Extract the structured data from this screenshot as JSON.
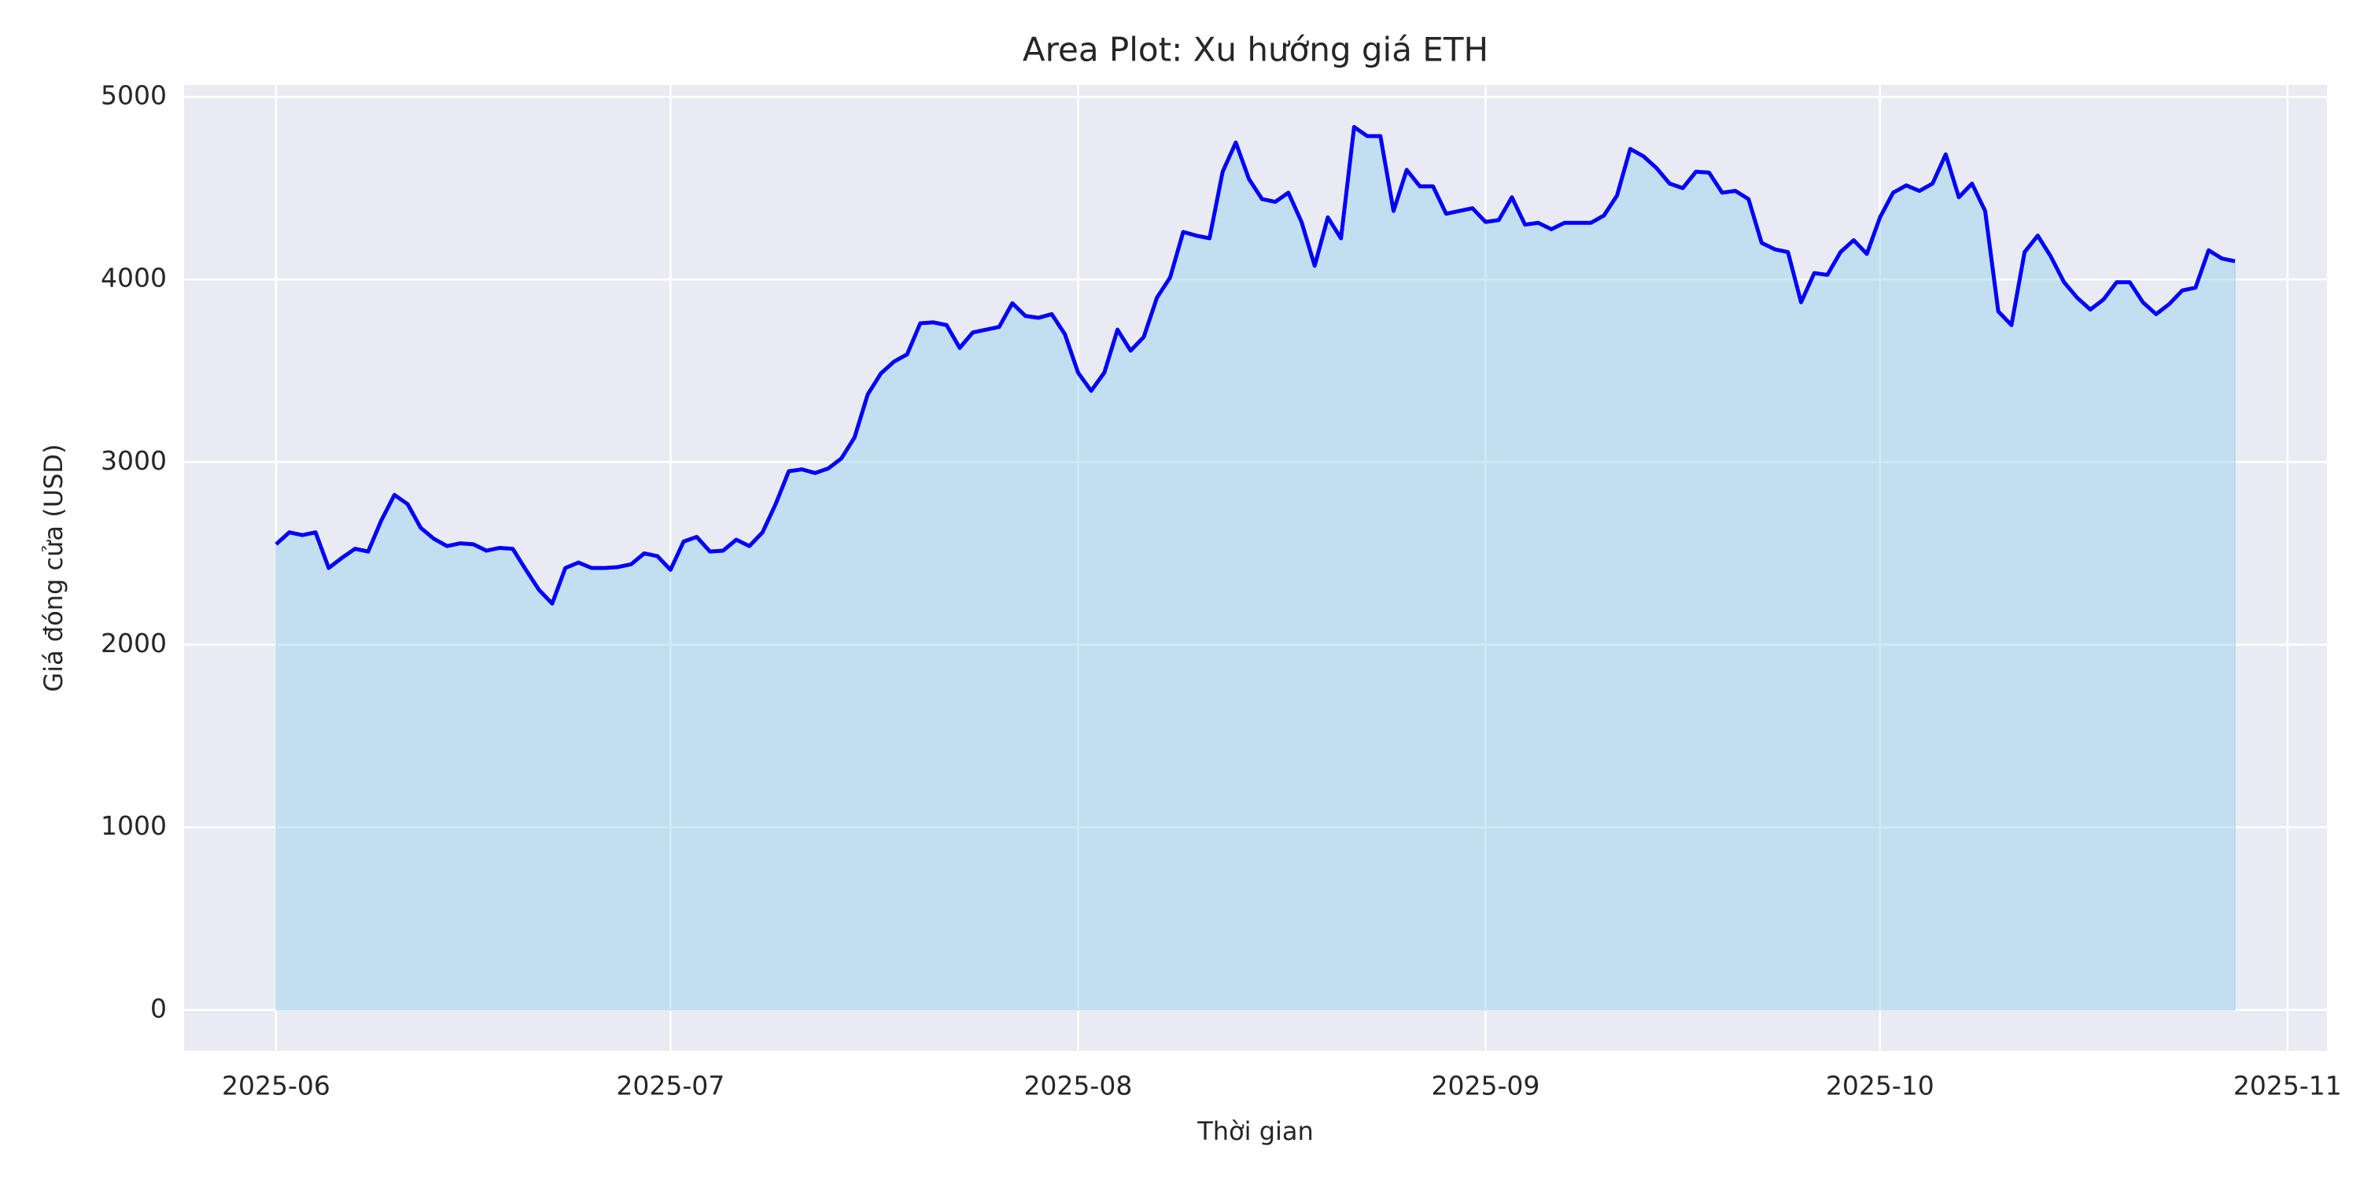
{
  "chart_data": {
    "type": "area",
    "title": "Area Plot: Xu hướng giá ETH",
    "xlabel": "Thời gian",
    "ylabel": "Giá đóng cửa (USD)",
    "x": [
      "2025-06-01",
      "2025-06-02",
      "2025-06-03",
      "2025-06-04",
      "2025-06-05",
      "2025-06-06",
      "2025-06-07",
      "2025-06-08",
      "2025-06-09",
      "2025-06-10",
      "2025-06-11",
      "2025-06-12",
      "2025-06-13",
      "2025-06-14",
      "2025-06-15",
      "2025-06-16",
      "2025-06-17",
      "2025-06-18",
      "2025-06-19",
      "2025-06-20",
      "2025-06-21",
      "2025-06-22",
      "2025-06-23",
      "2025-06-24",
      "2025-06-25",
      "2025-06-26",
      "2025-06-27",
      "2025-06-28",
      "2025-06-29",
      "2025-06-30",
      "2025-07-01",
      "2025-07-02",
      "2025-07-03",
      "2025-07-04",
      "2025-07-05",
      "2025-07-06",
      "2025-07-07",
      "2025-07-08",
      "2025-07-09",
      "2025-07-10",
      "2025-07-11",
      "2025-07-12",
      "2025-07-13",
      "2025-07-14",
      "2025-07-15",
      "2025-07-16",
      "2025-07-17",
      "2025-07-18",
      "2025-07-19",
      "2025-07-20",
      "2025-07-21",
      "2025-07-22",
      "2025-07-23",
      "2025-07-24",
      "2025-07-25",
      "2025-07-26",
      "2025-07-27",
      "2025-07-28",
      "2025-07-29",
      "2025-07-30",
      "2025-07-31",
      "2025-08-01",
      "2025-08-02",
      "2025-08-03",
      "2025-08-04",
      "2025-08-05",
      "2025-08-06",
      "2025-08-07",
      "2025-08-08",
      "2025-08-09",
      "2025-08-10",
      "2025-08-11",
      "2025-08-12",
      "2025-08-13",
      "2025-08-14",
      "2025-08-15",
      "2025-08-16",
      "2025-08-17",
      "2025-08-18",
      "2025-08-19",
      "2025-08-20",
      "2025-08-21",
      "2025-08-22",
      "2025-08-23",
      "2025-08-24",
      "2025-08-25",
      "2025-08-26",
      "2025-08-27",
      "2025-08-28",
      "2025-08-29",
      "2025-08-30",
      "2025-08-31",
      "2025-09-01",
      "2025-09-02",
      "2025-09-03",
      "2025-09-04",
      "2025-09-05",
      "2025-09-06",
      "2025-09-07",
      "2025-09-08",
      "2025-09-09",
      "2025-09-10",
      "2025-09-11",
      "2025-09-12",
      "2025-09-13",
      "2025-09-14",
      "2025-09-15",
      "2025-09-16",
      "2025-09-17",
      "2025-09-18",
      "2025-09-19",
      "2025-09-20",
      "2025-09-21",
      "2025-09-22",
      "2025-09-23",
      "2025-09-24",
      "2025-09-25",
      "2025-09-26",
      "2025-09-27",
      "2025-09-28",
      "2025-09-29",
      "2025-09-30",
      "2025-10-01",
      "2025-10-02",
      "2025-10-03",
      "2025-10-04",
      "2025-10-05",
      "2025-10-06",
      "2025-10-07",
      "2025-10-08",
      "2025-10-09",
      "2025-10-10",
      "2025-10-11",
      "2025-10-12",
      "2025-10-13",
      "2025-10-14",
      "2025-10-15",
      "2025-10-16",
      "2025-10-17",
      "2025-10-18",
      "2025-10-19",
      "2025-10-20",
      "2025-10-21",
      "2025-10-22",
      "2025-10-23",
      "2025-10-24",
      "2025-10-25",
      "2025-10-26",
      "2025-10-27",
      "2025-10-28"
    ],
    "values": [
      2550,
      2615,
      2600,
      2615,
      2420,
      2475,
      2525,
      2510,
      2680,
      2820,
      2770,
      2640,
      2580,
      2540,
      2555,
      2550,
      2515,
      2530,
      2525,
      2410,
      2300,
      2225,
      2420,
      2450,
      2420,
      2420,
      2425,
      2440,
      2500,
      2485,
      2410,
      2565,
      2590,
      2510,
      2515,
      2575,
      2540,
      2615,
      2770,
      2950,
      2960,
      2940,
      2965,
      3020,
      3135,
      3370,
      3485,
      3550,
      3590,
      3760,
      3765,
      3750,
      3625,
      3710,
      3725,
      3740,
      3870,
      3800,
      3790,
      3810,
      3700,
      3490,
      3390,
      3490,
      3725,
      3610,
      3685,
      3900,
      4010,
      4260,
      4240,
      4225,
      4590,
      4750,
      4550,
      4440,
      4425,
      4475,
      4315,
      4075,
      4340,
      4225,
      4835,
      4785,
      4785,
      4375,
      4600,
      4510,
      4510,
      4360,
      4375,
      4390,
      4315,
      4325,
      4450,
      4300,
      4310,
      4275,
      4310,
      4310,
      4310,
      4350,
      4460,
      4715,
      4675,
      4610,
      4525,
      4500,
      4590,
      4585,
      4475,
      4485,
      4440,
      4200,
      4165,
      4150,
      3875,
      4035,
      4025,
      4150,
      4215,
      4140,
      4340,
      4475,
      4515,
      4485,
      4525,
      4685,
      4450,
      4525,
      4375,
      3825,
      3750,
      4150,
      4240,
      4125,
      3985,
      3900,
      3835,
      3890,
      3985,
      3985,
      3875,
      3810,
      3865,
      3940,
      3955,
      4160,
      4115,
      4100
    ],
    "color": "#0000ff",
    "fill_color": "#87ceeb",
    "fill_opacity": 0.4,
    "xlim": [
      "2025-05-25",
      "2025-11-04"
    ],
    "xticks": [
      {
        "value": "2025-06-01",
        "label": "2025-06"
      },
      {
        "value": "2025-07-01",
        "label": "2025-07"
      },
      {
        "value": "2025-08-01",
        "label": "2025-08"
      },
      {
        "value": "2025-09-01",
        "label": "2025-09"
      },
      {
        "value": "2025-10-01",
        "label": "2025-10"
      },
      {
        "value": "2025-11-01",
        "label": "2025-11"
      }
    ],
    "ylim": [
      -225,
      5065
    ],
    "yticks": [
      0,
      1000,
      2000,
      3000,
      4000,
      5000
    ],
    "grid": true
  }
}
